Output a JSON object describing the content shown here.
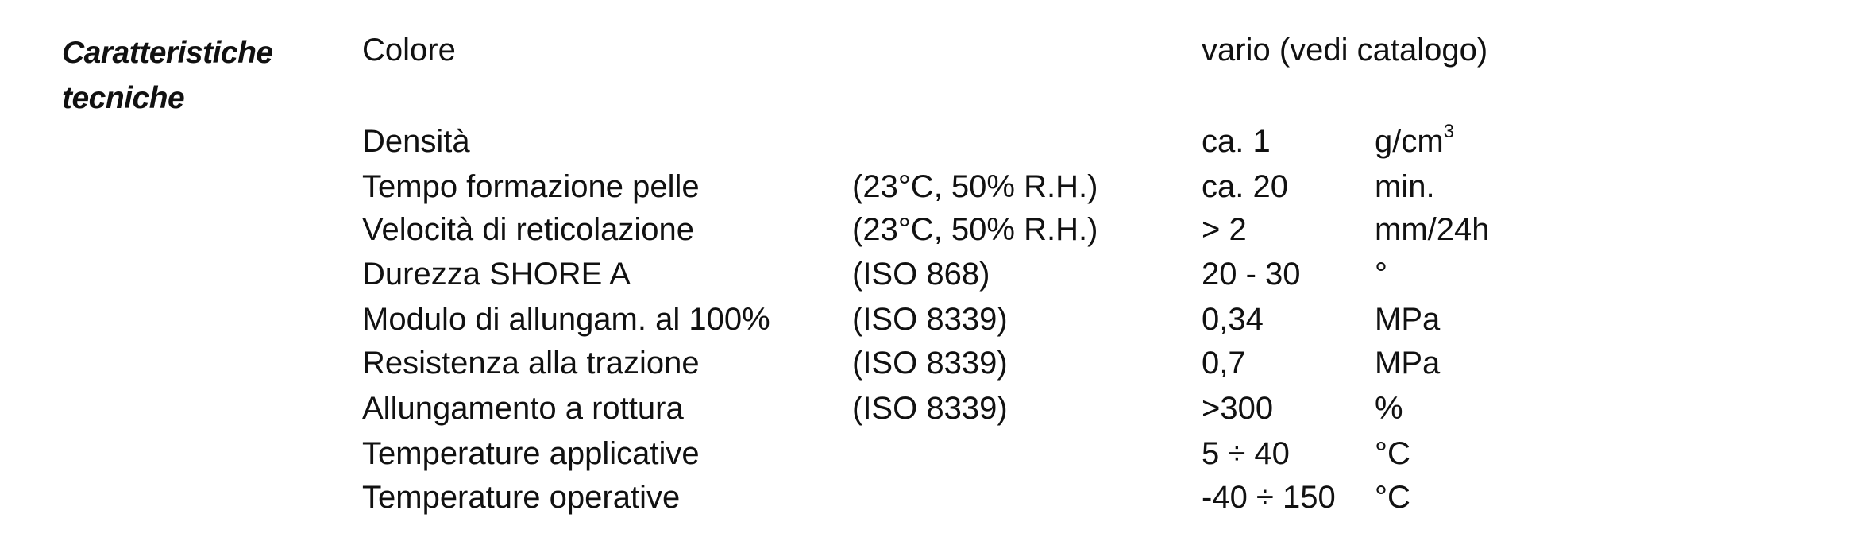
{
  "section": {
    "title_line1": "Caratteristiche",
    "title_line2": "tecniche"
  },
  "rows": [
    {
      "property": "Colore",
      "condition": "",
      "value": "vario (vedi catalogo)",
      "unit": ""
    },
    {
      "property": "Densità",
      "condition": "",
      "value": "ca. 1",
      "unit": "g/cm",
      "unit_sup": "3"
    },
    {
      "property": "Tempo formazione pelle",
      "condition": "(23°C, 50% R.H.)",
      "value": "ca. 20",
      "unit": "min."
    },
    {
      "property": "Velocità di reticolazione",
      "condition": "(23°C, 50% R.H.)",
      "value": "> 2",
      "unit": "mm/24h"
    },
    {
      "property": "Durezza SHORE A",
      "condition": "(ISO 868)",
      "value": "20 - 30",
      "unit": "°"
    },
    {
      "property": "Modulo di allungam. al 100%",
      "condition": "(ISO 8339)",
      "value": "0,34",
      "unit": "MPa"
    },
    {
      "property": "Resistenza alla trazione",
      "condition": "(ISO 8339)",
      "value": "0,7",
      "unit": "MPa"
    },
    {
      "property": "Allungamento a rottura",
      "condition": "(ISO 8339)",
      "value": ">300",
      "unit": "%"
    },
    {
      "property": "Temperature applicative",
      "condition": "",
      "value": "5 ÷ 40",
      "unit": "°C"
    },
    {
      "property": "Temperature operative",
      "condition": "",
      "value": "-40 ÷ 150",
      "unit": "°C"
    }
  ]
}
